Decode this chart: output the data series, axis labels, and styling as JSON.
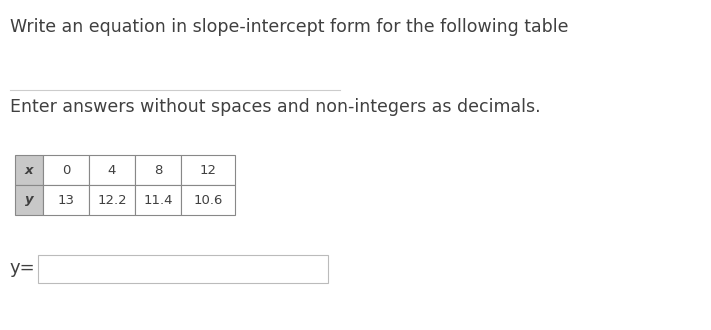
{
  "title_line1": "Write an equation in slope-intercept form for the following table",
  "title_line2": "Enter answers without spaces and non-integers as decimals.",
  "table_x_label": "x",
  "table_y_label": "y",
  "table_x_values": [
    "0",
    "4",
    "8",
    "12"
  ],
  "table_y_values": [
    "13",
    "12.2",
    "11.4",
    "10.6"
  ],
  "answer_label": "y=",
  "bg_color": "#ffffff",
  "text_color": "#404040",
  "table_header_bg": "#c8c8c8",
  "table_cell_bg": "#ffffff",
  "table_border_color": "#888888",
  "input_box_color": "#ffffff",
  "input_box_border": "#bbbbbb",
  "font_size_title": 12.5,
  "font_size_table": 9.5,
  "font_size_answer": 13,
  "divider_color": "#cccccc"
}
